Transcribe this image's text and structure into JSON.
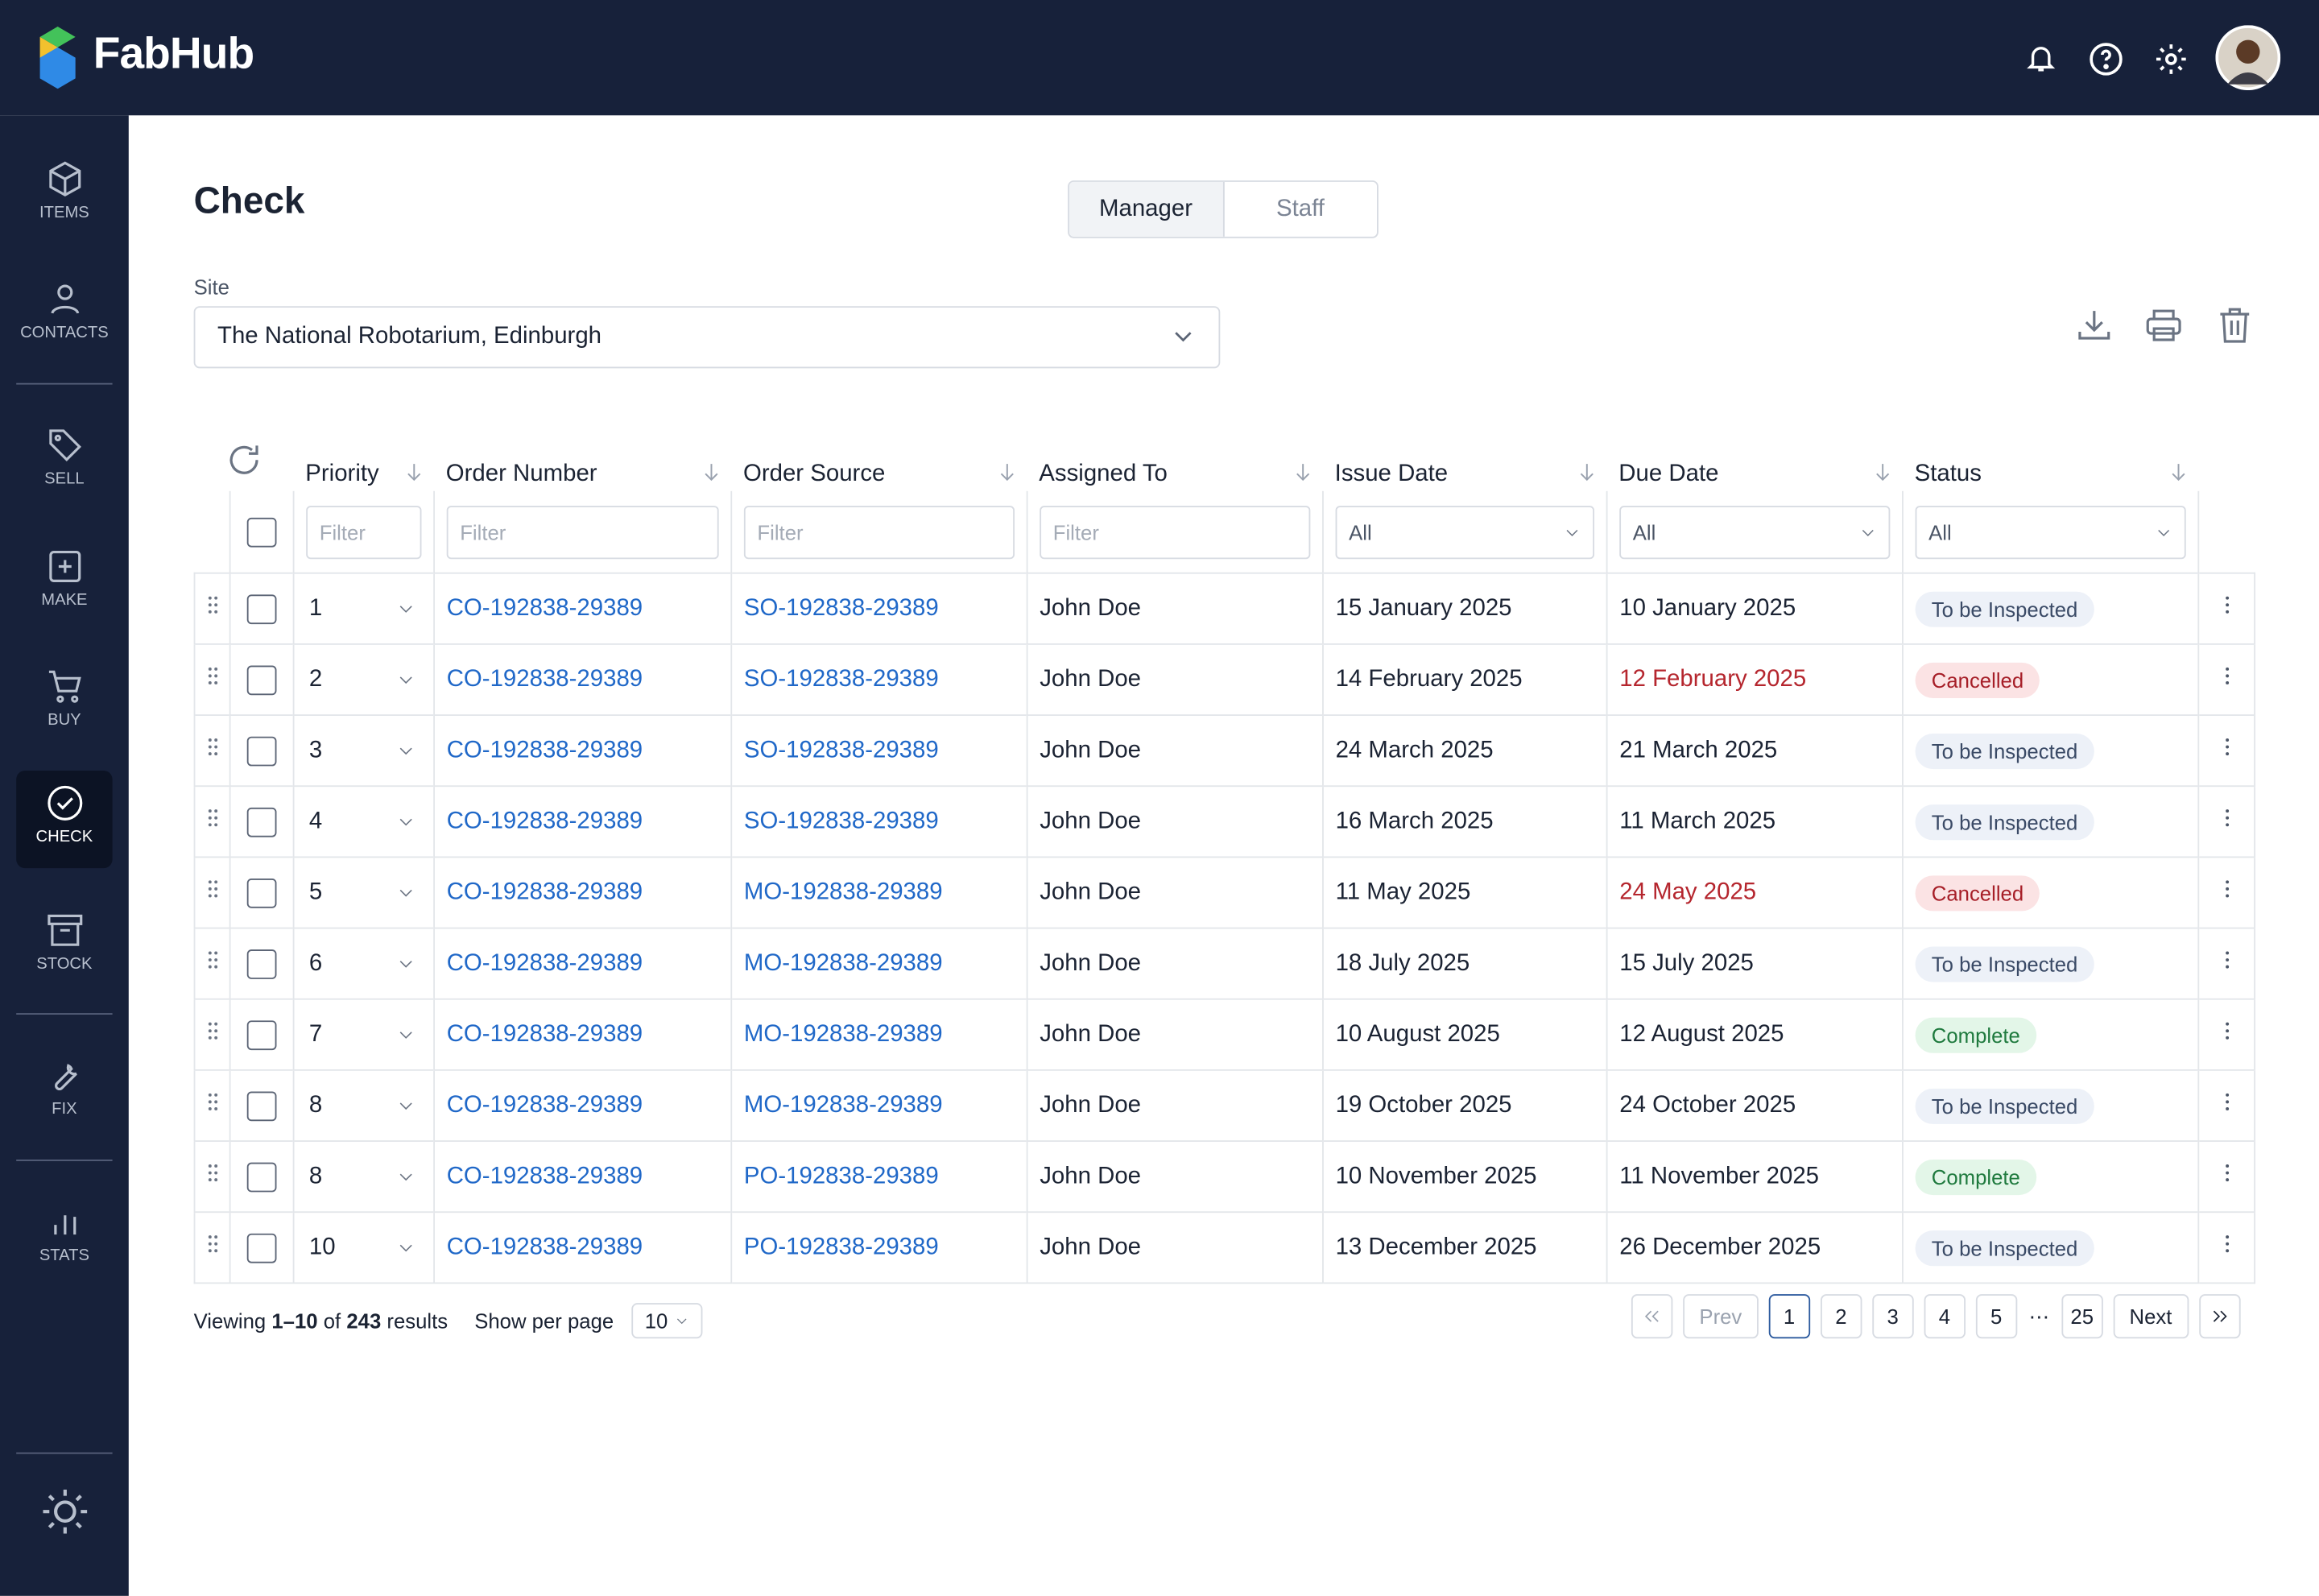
{
  "header": {
    "brand": "FabHub"
  },
  "sidebar": [
    "ITEMS",
    "CONTACTS",
    "SELL",
    "MAKE",
    "BUY",
    "CHECK",
    "STOCK",
    "FIX",
    "STATS"
  ],
  "page": {
    "title": "Check",
    "tabs": [
      "Manager",
      "Staff"
    ],
    "site_label": "Site",
    "site_value": "The National Robotarium, Edinburgh"
  },
  "table": {
    "columns": [
      "Priority",
      "Order Number",
      "Order Source",
      "Assigned To",
      "Issue Date",
      "Due Date",
      "Status"
    ],
    "filters": [
      "Filter",
      "Filter",
      "Filter",
      "Filter",
      "All",
      "All",
      "All"
    ],
    "rows": [
      {
        "priority": 1,
        "order": "CO-192838-29389",
        "source": "SO-192838-29389",
        "assigned": "John Doe",
        "issue": "15 January 2025",
        "due": "10 January 2025",
        "status": "To be Inspected",
        "color": "blue"
      },
      {
        "priority": 2,
        "order": "CO-192838-29389",
        "source": "SO-192838-29389",
        "assigned": "John Doe",
        "issue": "14 February 2025",
        "due": "12 February 2025",
        "status": "Cancelled",
        "color": "red"
      },
      {
        "priority": 3,
        "order": "CO-192838-29389",
        "source": "SO-192838-29389",
        "assigned": "John Doe",
        "issue": "24 March 2025",
        "due": "21 March 2025",
        "status": "To be Inspected",
        "color": "blue"
      },
      {
        "priority": 4,
        "order": "CO-192838-29389",
        "source": "SO-192838-29389",
        "assigned": "John Doe",
        "issue": "16 March 2025",
        "due": "11 March 2025",
        "status": "To be Inspected",
        "color": "blue"
      },
      {
        "priority": 5,
        "order": "CO-192838-29389",
        "source": "MO-192838-29389",
        "assigned": "John Doe",
        "issue": "11 May 2025",
        "due": "24 May 2025",
        "status": "Cancelled",
        "color": "red"
      },
      {
        "priority": 6,
        "order": "CO-192838-29389",
        "source": "MO-192838-29389",
        "assigned": "John Doe",
        "issue": "18 July 2025",
        "due": "15 July 2025",
        "status": "To be Inspected",
        "color": "blue"
      },
      {
        "priority": 7,
        "order": "CO-192838-29389",
        "source": "MO-192838-29389",
        "assigned": "John Doe",
        "issue": "10 August 2025",
        "due": "12 August 2025",
        "status": "Complete",
        "color": "green"
      },
      {
        "priority": 8,
        "order": "CO-192838-29389",
        "source": "MO-192838-29389",
        "assigned": "John Doe",
        "issue": "19 October 2025",
        "due": "24 October 2025",
        "status": "To be Inspected",
        "color": "blue"
      },
      {
        "priority": 8,
        "order": "CO-192838-29389",
        "source": "PO-192838-29389",
        "assigned": "John Doe",
        "issue": "10 November 2025",
        "due": "11 November 2025",
        "status": "Complete",
        "color": "green"
      },
      {
        "priority": 10,
        "order": "CO-192838-29389",
        "source": "PO-192838-29389",
        "assigned": "John Doe",
        "issue": "13 December 2025",
        "due": "26 December 2025",
        "status": "To be Inspected",
        "color": "blue"
      }
    ]
  },
  "footer": {
    "viewing": [
      "Viewing ",
      "1–10",
      " of ",
      "243",
      " results"
    ],
    "per_page_label": "Show per page",
    "per_page": "10",
    "pages": [
      "Prev",
      "1",
      "2",
      "3",
      "4",
      "5",
      "⋯",
      "25",
      "Next"
    ]
  }
}
